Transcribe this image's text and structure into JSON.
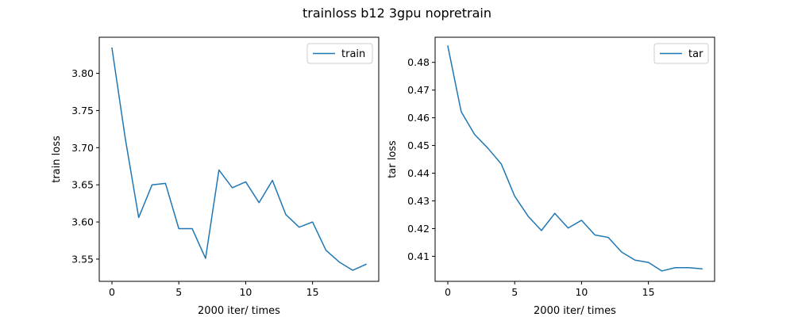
{
  "figure": {
    "suptitle": "trainloss b12 3gpu nopretrain"
  },
  "chart_data": [
    {
      "type": "line",
      "title": "",
      "xlabel": "2000 iter/ times",
      "ylabel": "train loss",
      "xlim": [
        -0.95,
        19.95
      ],
      "ylim": [
        3.5201,
        3.8486
      ],
      "xticks": [
        0,
        5,
        10,
        15
      ],
      "xtick_labels": [
        "0",
        "5",
        "10",
        "15"
      ],
      "yticks": [
        3.55,
        3.6,
        3.65,
        3.7,
        3.75,
        3.8
      ],
      "ytick_labels": [
        "3.55",
        "3.60",
        "3.65",
        "3.70",
        "3.75",
        "3.80"
      ],
      "grid": false,
      "legend": "upper-right",
      "series": [
        {
          "name": "train",
          "color": "#1f77b4",
          "x": [
            0,
            1,
            2,
            3,
            4,
            5,
            6,
            7,
            8,
            9,
            10,
            11,
            12,
            13,
            14,
            15,
            16,
            17,
            18,
            19
          ],
          "values": [
            3.834,
            3.712,
            3.606,
            3.65,
            3.652,
            3.591,
            3.591,
            3.551,
            3.67,
            3.646,
            3.654,
            3.626,
            3.656,
            3.61,
            3.593,
            3.6,
            3.562,
            3.546,
            3.535,
            3.543
          ]
        }
      ]
    },
    {
      "type": "line",
      "title": "",
      "xlabel": "2000 iter/ times",
      "ylabel": "tar loss",
      "xlim": [
        -0.95,
        19.95
      ],
      "ylim": [
        0.40096,
        0.48907
      ],
      "xticks": [
        0,
        5,
        10,
        15
      ],
      "xtick_labels": [
        "0",
        "5",
        "10",
        "15"
      ],
      "yticks": [
        0.41,
        0.42,
        0.43,
        0.44,
        0.45,
        0.46,
        0.47,
        0.48
      ],
      "ytick_labels": [
        "0.41",
        "0.42",
        "0.43",
        "0.44",
        "0.45",
        "0.46",
        "0.47",
        "0.48"
      ],
      "grid": false,
      "legend": "upper-right",
      "series": [
        {
          "name": "tar",
          "color": "#1f77b4",
          "x": [
            0,
            1,
            2,
            3,
            4,
            5,
            6,
            7,
            8,
            9,
            10,
            11,
            12,
            13,
            14,
            15,
            16,
            17,
            18,
            19
          ],
          "values": [
            0.4859,
            0.4622,
            0.454,
            0.449,
            0.4433,
            0.4317,
            0.4245,
            0.4193,
            0.4255,
            0.4202,
            0.423,
            0.4177,
            0.4168,
            0.4115,
            0.4086,
            0.4078,
            0.4047,
            0.4059,
            0.4059,
            0.4055
          ]
        }
      ]
    }
  ]
}
